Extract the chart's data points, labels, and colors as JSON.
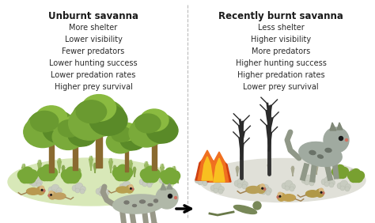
{
  "left_title": "Unburnt savanna",
  "left_items": [
    "More shelter",
    "Lower visibility",
    "Fewer predators",
    "Lower hunting success",
    "Lower predation rates",
    "Higher prey survival"
  ],
  "right_title": "Recently burnt savanna",
  "right_items": [
    "Less shelter",
    "Higher visibility",
    "More predators",
    "Higher hunting success",
    "Higher predation rates",
    "Lower prey survival"
  ],
  "bg_color": "#ffffff",
  "border_color": "#7ab648",
  "title_color": "#1a1a1a",
  "text_color": "#2a2a2a",
  "divider_color": "#bbbbbb",
  "fig_width": 4.74,
  "fig_height": 2.82,
  "title_fontsize": 8.5,
  "text_fontsize": 7.0
}
